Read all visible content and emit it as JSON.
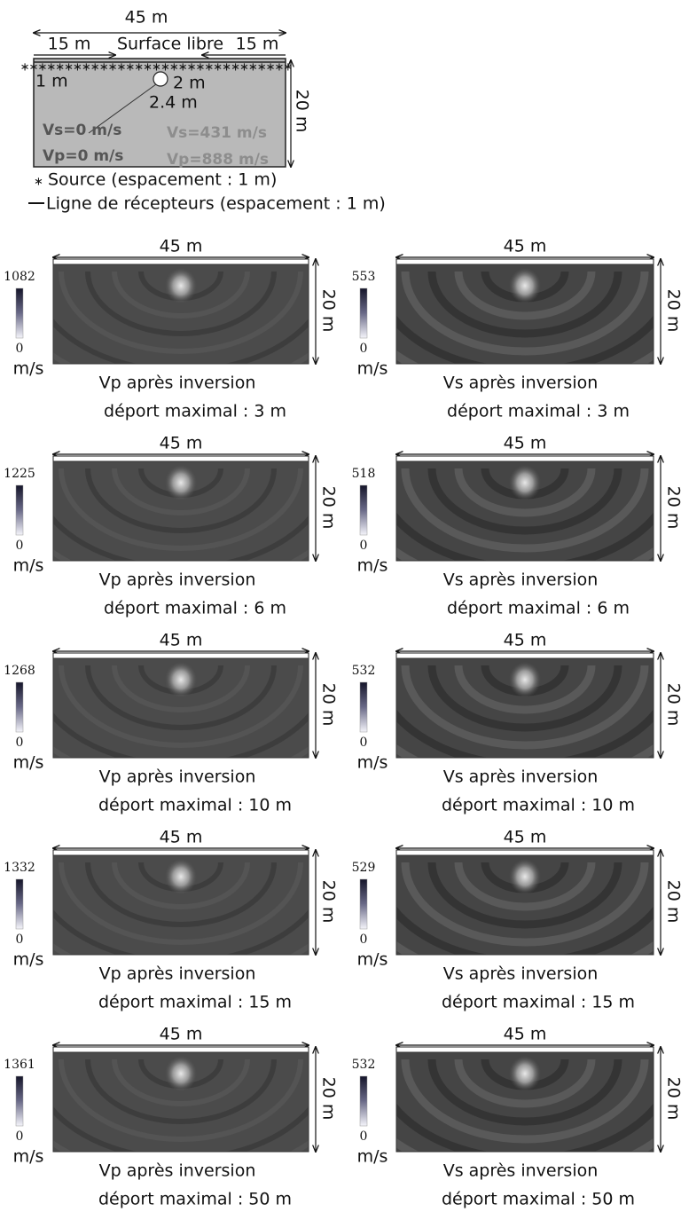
{
  "schematic": {
    "width_label": "45 m",
    "left_label": "15 m",
    "surface_label": "Surface libre",
    "right_label": "15 m",
    "spacing_label": "1 m",
    "diameter_label": "2 m",
    "depth_label": "2.4 m",
    "cavity_vs": "Vs=0 m/s",
    "cavity_vp": "Vp=0 m/s",
    "medium_vs": "Vs=431 m/s",
    "medium_vp": "Vp=888 m/s",
    "height_label": "20 m"
  },
  "legend": {
    "source": "Source (espacement : 1 m)",
    "receivers": "Ligne de récepteurs (espacement : 1 m)"
  },
  "panels": [
    {
      "width_label": "45 m",
      "height_label": "20 m",
      "colorbar_max": 1082,
      "colorbar_min": 0,
      "unit": "m/s",
      "title": "Vp après inversion",
      "subtitle": "déport maximal : 3 m"
    },
    {
      "width_label": "45 m",
      "height_label": "20 m",
      "colorbar_max": 553,
      "colorbar_min": 0,
      "unit": "m/s",
      "title": "Vs après inversion",
      "subtitle": "déport maximal : 3 m"
    },
    {
      "width_label": "45 m",
      "height_label": "20 m",
      "colorbar_max": 1225,
      "colorbar_min": 0,
      "unit": "m/s",
      "title": "Vp après inversion",
      "subtitle": "déport maximal : 6 m"
    },
    {
      "width_label": "45 m",
      "height_label": "20 m",
      "colorbar_max": 518,
      "colorbar_min": 0,
      "unit": "m/s",
      "title": "Vs après inversion",
      "subtitle": "déport maximal : 6 m"
    },
    {
      "width_label": "45 m",
      "height_label": "20 m",
      "colorbar_max": 1268,
      "colorbar_min": 0,
      "unit": "m/s",
      "title": "Vp après inversion",
      "subtitle": "déport maximal : 10 m"
    },
    {
      "width_label": "45 m",
      "height_label": "20 m",
      "colorbar_max": 532,
      "colorbar_min": 0,
      "unit": "m/s",
      "title": "Vs après inversion",
      "subtitle": "déport maximal : 10 m"
    },
    {
      "width_label": "45 m",
      "height_label": "20 m",
      "colorbar_max": 1332,
      "colorbar_min": 0,
      "unit": "m/s",
      "title": "Vp après inversion",
      "subtitle": "déport maximal : 15 m"
    },
    {
      "width_label": "45 m",
      "height_label": "20 m",
      "colorbar_max": 529,
      "colorbar_min": 0,
      "unit": "m/s",
      "title": "Vs après inversion",
      "subtitle": "déport maximal : 15 m"
    },
    {
      "width_label": "45 m",
      "height_label": "20 m",
      "colorbar_max": 1361,
      "colorbar_min": 0,
      "unit": "m/s",
      "title": "Vp après inversion",
      "subtitle": "déport maximal : 50 m"
    },
    {
      "width_label": "45 m",
      "height_label": "20 m",
      "colorbar_max": 532,
      "colorbar_min": 0,
      "unit": "m/s",
      "title": "Vs après inversion",
      "subtitle": "déport maximal : 50 m"
    }
  ]
}
